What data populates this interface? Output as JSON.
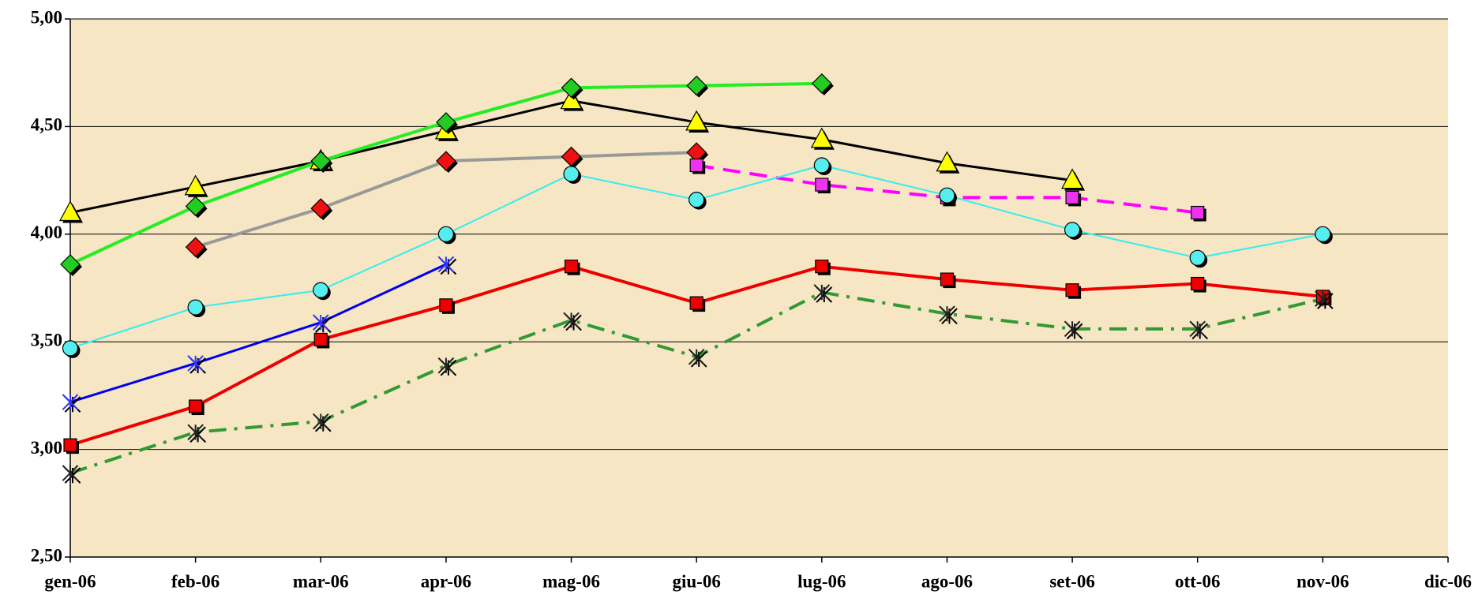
{
  "chart_data": {
    "type": "line",
    "categories": [
      "gen-06",
      "feb-06",
      "mar-06",
      "apr-06",
      "mag-06",
      "giu-06",
      "lug-06",
      "ago-06",
      "set-06",
      "ott-06",
      "nov-06",
      "dic-06"
    ],
    "ylim": [
      2.5,
      5
    ],
    "yticks": [
      {
        "value": 2.5,
        "label": "2,50"
      },
      {
        "value": 3,
        "label": "3,00"
      },
      {
        "value": 3.5,
        "label": "3,50"
      },
      {
        "value": 4,
        "label": "4,00"
      },
      {
        "value": 4.5,
        "label": "4,50"
      },
      {
        "value": 5,
        "label": "5,00"
      }
    ],
    "grid": true,
    "background": "#f6e6c4",
    "series": [
      {
        "color": "#000000",
        "marker": "triangle",
        "marker_color": "#ffff00",
        "width": 3,
        "dash": "solid",
        "values": [
          4.1,
          4.22,
          4.34,
          4.48,
          4.62,
          4.52,
          4.44,
          4.33,
          4.25,
          null,
          null,
          null
        ]
      },
      {
        "color": "#22ee22",
        "marker": "diamond",
        "marker_color": "#22cc22",
        "width": 4,
        "dash": "solid",
        "values": [
          3.86,
          4.13,
          4.34,
          4.52,
          4.68,
          4.69,
          4.7,
          null,
          null,
          null,
          null,
          null
        ]
      },
      {
        "color": "#999999",
        "marker": "diamond",
        "marker_color": "#ee1111",
        "width": 4,
        "dash": "solid",
        "values": [
          null,
          3.94,
          4.12,
          4.34,
          4.36,
          4.38,
          null,
          null,
          null,
          null,
          null,
          null
        ]
      },
      {
        "color": "#ff00ff",
        "marker": "square",
        "marker_color": "#ee33ee",
        "width": 4,
        "dash": "dash",
        "values": [
          null,
          null,
          null,
          null,
          null,
          4.32,
          4.23,
          4.17,
          4.17,
          4.1,
          null,
          null
        ]
      },
      {
        "color": "#33eeee",
        "marker": "circle",
        "marker_color": "#55eeee",
        "width": 2,
        "dash": "solid",
        "values": [
          3.47,
          3.66,
          3.74,
          4.0,
          4.28,
          4.16,
          4.32,
          4.18,
          4.02,
          3.89,
          4.0,
          null
        ]
      },
      {
        "color": "#0000ee",
        "marker": "asterisk",
        "marker_color": "#3333ff",
        "width": 3,
        "dash": "solid",
        "values": [
          3.22,
          3.4,
          3.59,
          3.86,
          null,
          null,
          null,
          null,
          null,
          null,
          null,
          null
        ]
      },
      {
        "color": "#ee0000",
        "marker": "square",
        "marker_color": "#ee0000",
        "width": 4,
        "dash": "solid",
        "values": [
          3.02,
          3.2,
          3.51,
          3.67,
          3.85,
          3.68,
          3.85,
          3.79,
          3.74,
          3.77,
          3.71,
          null
        ]
      },
      {
        "color": "#339933",
        "marker": "asterisk",
        "marker_color": "#222222",
        "width": 4,
        "dash": "dashdot",
        "values": [
          2.89,
          3.08,
          3.13,
          3.39,
          3.6,
          3.43,
          3.73,
          3.63,
          3.56,
          3.56,
          3.7,
          null
        ]
      }
    ]
  }
}
